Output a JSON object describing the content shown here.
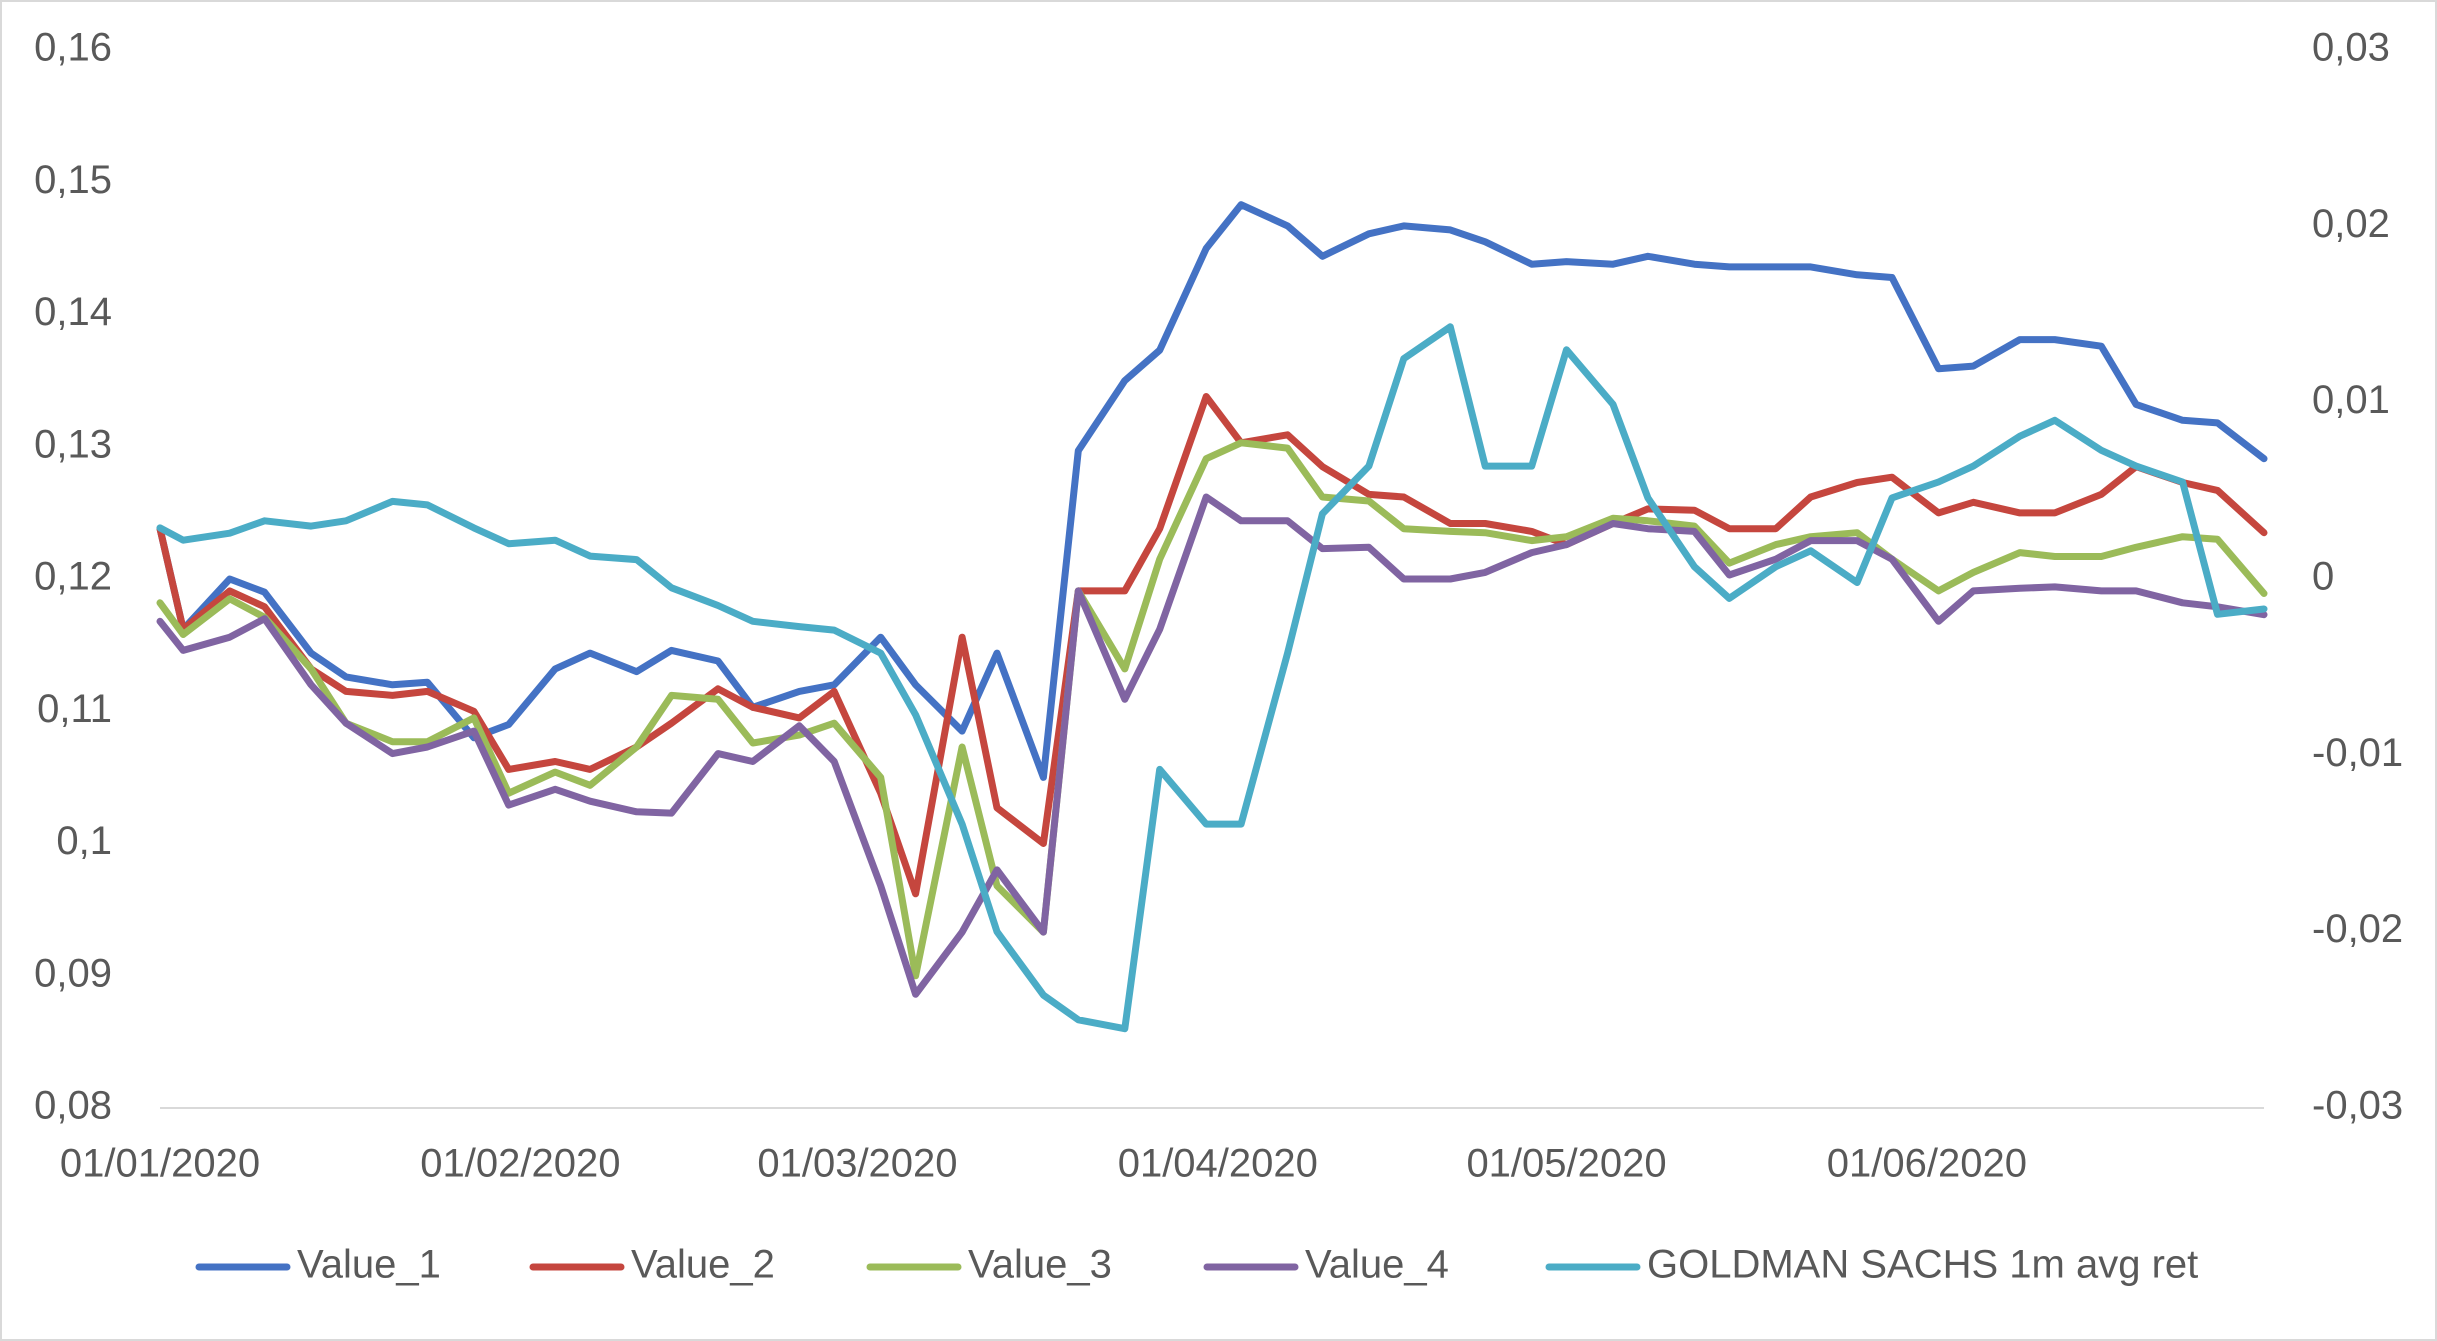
{
  "chart_data": {
    "type": "line",
    "x": [
      "01/01/2020",
      "03/01/2020",
      "07/01/2020",
      "10/01/2020",
      "14/01/2020",
      "17/01/2020",
      "21/01/2020",
      "24/01/2020",
      "28/01/2020",
      "31/01/2020",
      "04/02/2020",
      "07/02/2020",
      "11/02/2020",
      "14/02/2020",
      "18/02/2020",
      "21/02/2020",
      "25/02/2020",
      "28/02/2020",
      "03/03/2020",
      "06/03/2020",
      "10/03/2020",
      "13/03/2020",
      "17/03/2020",
      "20/03/2020",
      "24/03/2020",
      "27/03/2020",
      "31/03/2020",
      "03/04/2020",
      "07/04/2020",
      "10/04/2020",
      "14/04/2020",
      "17/04/2020",
      "21/04/2020",
      "24/04/2020",
      "28/04/2020",
      "01/05/2020",
      "05/05/2020",
      "08/05/2020",
      "12/05/2020",
      "15/05/2020",
      "19/05/2020",
      "22/05/2020",
      "26/05/2020",
      "29/05/2020",
      "02/06/2020",
      "05/06/2020",
      "09/06/2020",
      "12/06/2020",
      "16/06/2020",
      "19/06/2020",
      "23/06/2020",
      "26/06/2020",
      "30/06/2020"
    ],
    "xlim": [
      "01/01/2020",
      "30/06/2020"
    ],
    "xticks": [
      "01/01/2020",
      "01/02/2020",
      "01/03/2020",
      "01/04/2020",
      "01/05/2020",
      "01/06/2020"
    ],
    "ylim": [
      0.08,
      0.16
    ],
    "yticks": [
      {
        "value": 0.08,
        "label": "0,08"
      },
      {
        "value": 0.09,
        "label": "0,09"
      },
      {
        "value": 0.1,
        "label": "0,1"
      },
      {
        "value": 0.11,
        "label": "0,11"
      },
      {
        "value": 0.12,
        "label": "0,12"
      },
      {
        "value": 0.13,
        "label": "0,13"
      },
      {
        "value": 0.14,
        "label": "0,14"
      },
      {
        "value": 0.15,
        "label": "0,15"
      },
      {
        "value": 0.16,
        "label": "0,16"
      }
    ],
    "y2lim": [
      -0.03,
      0.03
    ],
    "y2ticks": [
      {
        "value": -0.03,
        "label": "-0,03"
      },
      {
        "value": -0.02,
        "label": "-0,02"
      },
      {
        "value": -0.01,
        "label": "-0,01"
      },
      0,
      {
        "value": 0.01,
        "label": "0,01"
      },
      {
        "value": 0.02,
        "label": "0,02"
      },
      {
        "value": 0.03,
        "label": "0,03"
      }
    ],
    "grid": false,
    "legend": "bottom",
    "series": [
      {
        "name": "Value_1",
        "color": "#4472c4",
        "values": [
          0.1238,
          0.1162,
          0.12,
          0.119,
          0.1144,
          0.1126,
          0.112,
          0.1122,
          0.108,
          0.109,
          0.1132,
          0.1144,
          0.113,
          0.1146,
          0.1138,
          0.1103,
          0.1115,
          0.112,
          0.1156,
          0.112,
          0.1085,
          0.1144,
          0.105,
          0.1297,
          0.135,
          0.1373,
          0.145,
          0.1483,
          0.1467,
          0.1444,
          0.1461,
          0.1467,
          0.1464,
          0.1455,
          0.1438,
          0.144,
          0.1438,
          0.1444,
          0.1438,
          0.1436,
          0.1436,
          0.1436,
          0.143,
          0.1428,
          0.1359,
          0.1361,
          0.1381,
          0.1381,
          0.1376,
          0.1332,
          0.132,
          0.1318,
          0.1291
        ]
      },
      {
        "name": "Value_2",
        "color": "#c5463e",
        "values": [
          0.1238,
          0.1162,
          0.1191,
          0.1179,
          0.1132,
          0.1115,
          0.1112,
          0.1115,
          0.11,
          0.1056,
          0.1062,
          0.1056,
          0.1073,
          0.1091,
          0.1117,
          0.1103,
          0.1095,
          0.1115,
          0.1038,
          0.0962,
          0.1156,
          0.1027,
          0.1,
          0.1191,
          0.1191,
          0.1238,
          0.1338,
          0.1303,
          0.1309,
          0.1285,
          0.1264,
          0.1262,
          0.1242,
          0.1242,
          0.1236,
          0.1226,
          0.1242,
          0.1253,
          0.1252,
          0.1238,
          0.1238,
          0.1262,
          0.1273,
          0.1277,
          0.125,
          0.1258,
          0.125,
          0.125,
          0.1264,
          0.1285,
          0.1273,
          0.1267,
          0.1235
        ]
      },
      {
        "name": "Value_3",
        "color": "#9bbb59",
        "values": [
          0.1182,
          0.1158,
          0.1185,
          0.1171,
          0.1132,
          0.1091,
          0.1077,
          0.1077,
          0.1095,
          0.1038,
          0.1054,
          0.1044,
          0.1073,
          0.1112,
          0.1109,
          0.1076,
          0.1082,
          0.1091,
          0.105,
          0.09,
          0.1073,
          0.0968,
          0.0933,
          0.1191,
          0.1132,
          0.1215,
          0.1291,
          0.1303,
          0.1299,
          0.1262,
          0.1259,
          0.1238,
          0.1236,
          0.1235,
          0.1229,
          0.1232,
          0.1246,
          0.1244,
          0.124,
          0.1212,
          0.1226,
          0.1232,
          0.1235,
          0.1215,
          0.1191,
          0.1205,
          0.122,
          0.1217,
          0.1217,
          0.1224,
          0.1232,
          0.123,
          0.1189
        ]
      },
      {
        "name": "Value_4",
        "color": "#8064a2",
        "values": [
          0.1168,
          0.1146,
          0.1156,
          0.117,
          0.112,
          0.1091,
          0.1068,
          0.1073,
          0.1085,
          0.1029,
          0.1041,
          0.1032,
          0.1024,
          0.1023,
          0.1068,
          0.1062,
          0.1089,
          0.1062,
          0.0968,
          0.0886,
          0.0933,
          0.098,
          0.0933,
          0.1191,
          0.1109,
          0.1162,
          0.1262,
          0.1244,
          0.1244,
          0.1223,
          0.1224,
          0.12,
          0.12,
          0.1205,
          0.122,
          0.1226,
          0.1242,
          0.1238,
          0.1236,
          0.1203,
          0.1215,
          0.1229,
          0.1229,
          0.1215,
          0.1168,
          0.1191,
          0.1193,
          0.1194,
          0.1191,
          0.1191,
          0.1182,
          0.1179,
          0.1173
        ]
      },
      {
        "name": "GOLDMAN SACHS 1m avg ret",
        "color": "#4bacc6",
        "axis": "y2",
        "values": [
          0.0029,
          0.0022,
          0.0026,
          0.0033,
          0.003,
          0.0033,
          0.0044,
          0.0042,
          0.0029,
          0.002,
          0.0022,
          0.0013,
          0.0011,
          -0.0005,
          -0.0015,
          -0.0024,
          -0.0027,
          -0.0029,
          -0.0042,
          -0.0077,
          -0.0139,
          -0.02,
          -0.0236,
          -0.025,
          -0.0255,
          -0.0108,
          -0.0139,
          -0.0139,
          -0.0042,
          0.0037,
          0.0064,
          0.0125,
          0.0143,
          0.0064,
          0.0064,
          0.013,
          0.0099,
          0.0046,
          0.0007,
          -0.0011,
          0.0007,
          0.0016,
          -0.0002,
          0.0046,
          0.0055,
          0.0064,
          0.0081,
          0.009,
          0.0073,
          0.0064,
          0.0055,
          -0.002,
          -0.0017
        ]
      }
    ]
  }
}
